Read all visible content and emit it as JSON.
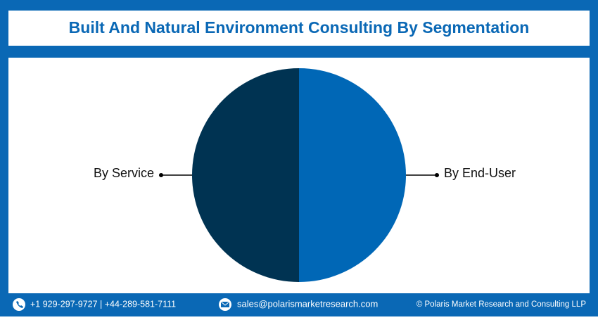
{
  "chart_data": {
    "type": "pie",
    "title": "Built And Natural Environment Consulting By Segmentation",
    "categories": [
      "By End-User",
      "By Service"
    ],
    "values": [
      50,
      50
    ],
    "colors": [
      "#0067b6",
      "#003352"
    ]
  },
  "footer": {
    "phone": "+1 929-297-9727 | +44-289-581-7111",
    "email": "sales@polarismarketresearch.com",
    "copyright": "© Polaris Market Research and Consulting LLP"
  }
}
